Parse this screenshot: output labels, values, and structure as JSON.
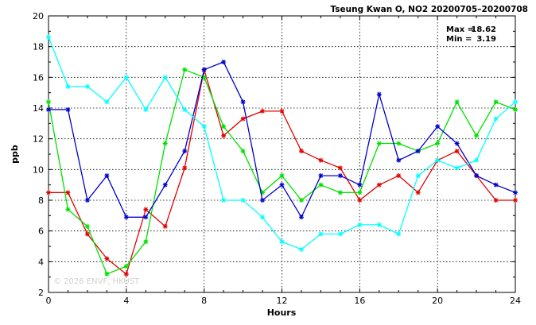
{
  "header": {
    "title": "Tseung Kwan O, NO2 20200705–20200708"
  },
  "stats": {
    "max_label": "Max =",
    "max_value": "18.62",
    "min_label": "Min =",
    "min_value": "3.19"
  },
  "watermark": "© 2026  ENVF, HKUST",
  "colors": {
    "red": "#e00000",
    "green": "#00e000",
    "blue": "#0000cc",
    "cyan": "#00ffff"
  },
  "chart_data": {
    "type": "line",
    "title": "Tseung Kwan O, NO2 20200705–20200708",
    "xlabel": "Hours",
    "ylabel": "ppb",
    "xlim": [
      0,
      24
    ],
    "ylim": [
      2,
      20
    ],
    "xticks": [
      0,
      4,
      8,
      12,
      16,
      20,
      24
    ],
    "yticks": [
      2,
      4,
      6,
      8,
      10,
      12,
      14,
      16,
      18,
      20
    ],
    "grid": true,
    "x": [
      0,
      1,
      2,
      3,
      4,
      5,
      6,
      7,
      8,
      9,
      10,
      11,
      12,
      13,
      14,
      15,
      16,
      17,
      18,
      19,
      20,
      21,
      22,
      23,
      24
    ],
    "series": [
      {
        "color": "#e00000",
        "values": [
          8.5,
          8.5,
          5.8,
          4.2,
          3.19,
          7.4,
          6.3,
          10.1,
          16.5,
          12.2,
          13.3,
          13.8,
          13.8,
          11.2,
          10.6,
          10.1,
          8.0,
          9.0,
          9.6,
          8.5,
          10.6,
          11.2,
          9.6,
          8.0,
          8.0
        ]
      },
      {
        "color": "#00e000",
        "values": [
          14.4,
          7.4,
          6.3,
          3.2,
          3.7,
          5.3,
          11.7,
          16.5,
          16.0,
          12.8,
          11.2,
          8.5,
          9.6,
          8.0,
          9.0,
          8.5,
          8.5,
          11.7,
          11.7,
          11.2,
          11.7,
          14.4,
          12.2,
          14.4,
          13.9
        ]
      },
      {
        "color": "#0000cc",
        "values": [
          13.9,
          13.9,
          8.0,
          9.6,
          6.9,
          6.9,
          9.0,
          11.2,
          16.5,
          17.0,
          14.4,
          8.0,
          9.0,
          6.9,
          9.6,
          9.6,
          9.0,
          14.9,
          10.6,
          11.2,
          12.8,
          11.7,
          9.6,
          9.0,
          8.5
        ]
      },
      {
        "color": "#00ffff",
        "values": [
          18.62,
          15.4,
          15.4,
          14.4,
          16.0,
          13.9,
          16.0,
          13.9,
          12.8,
          8.0,
          8.0,
          6.9,
          5.3,
          4.8,
          5.8,
          5.8,
          6.4,
          6.4,
          5.8,
          9.6,
          10.6,
          10.1,
          10.6,
          13.3,
          14.4
        ]
      }
    ]
  }
}
